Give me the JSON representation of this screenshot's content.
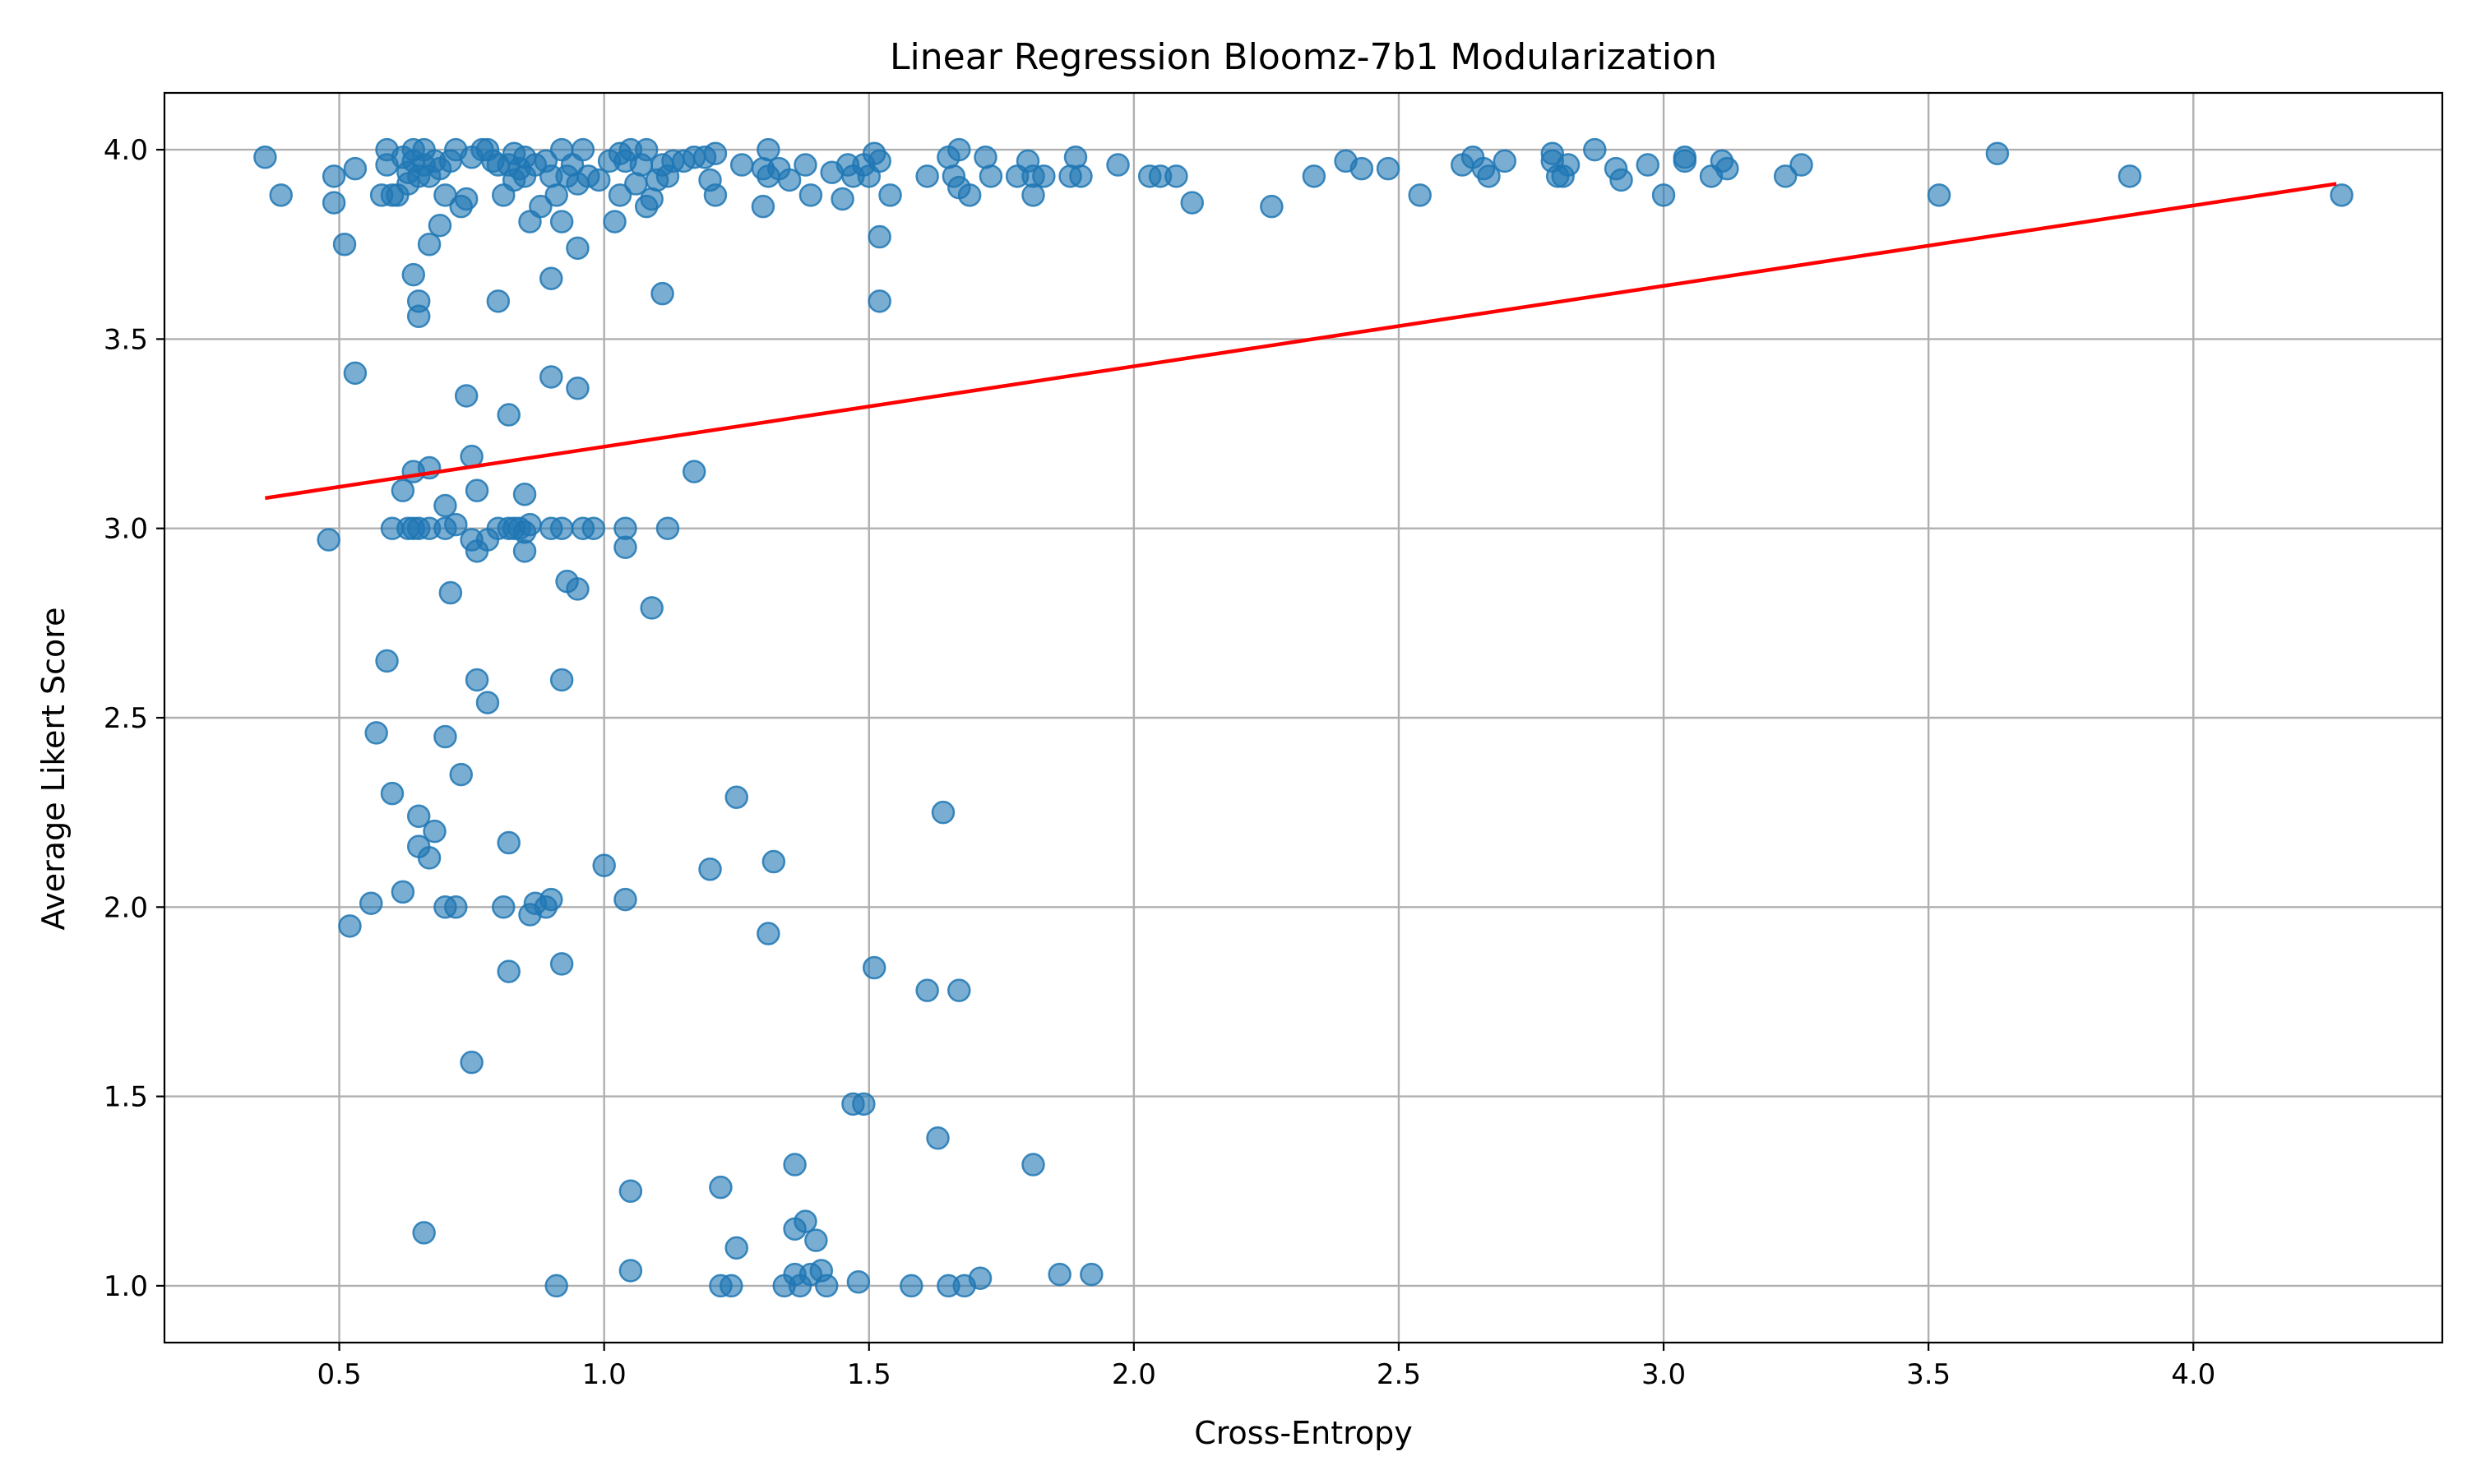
{
  "chart_data": {
    "type": "scatter",
    "title": "Linear Regression Bloomz-7b1 Modularization",
    "xlabel": "Cross-Entropy",
    "ylabel": "Average Likert Score",
    "xlim": [
      0.17,
      4.47
    ],
    "ylim": [
      0.85,
      4.15
    ],
    "xticks": [
      0.5,
      1.0,
      1.5,
      2.0,
      2.5,
      3.0,
      3.5,
      4.0
    ],
    "xtick_labels": [
      "0.5",
      "1.0",
      "1.5",
      "2.0",
      "2.5",
      "3.0",
      "3.5",
      "4.0"
    ],
    "yticks": [
      1.0,
      1.5,
      2.0,
      2.5,
      3.0,
      3.5,
      4.0
    ],
    "ytick_labels": [
      "1.0",
      "1.5",
      "2.0",
      "2.5",
      "3.0",
      "3.5",
      "4.0"
    ],
    "grid": true,
    "point_color": "#1f77b4",
    "line_color": "#ff0000",
    "regression_line": {
      "x": [
        0.36,
        4.27
      ],
      "y": [
        3.08,
        3.91
      ]
    },
    "points": [
      [
        0.36,
        3.98
      ],
      [
        0.39,
        3.88
      ],
      [
        0.49,
        3.93
      ],
      [
        0.49,
        3.86
      ],
      [
        0.51,
        3.75
      ],
      [
        0.53,
        3.95
      ],
      [
        0.58,
        3.88
      ],
      [
        0.59,
        3.96
      ],
      [
        0.59,
        4.0
      ],
      [
        0.6,
        3.88
      ],
      [
        0.61,
        3.88
      ],
      [
        0.62,
        3.98
      ],
      [
        0.63,
        3.94
      ],
      [
        0.63,
        3.91
      ],
      [
        0.64,
        4.0
      ],
      [
        0.64,
        3.97
      ],
      [
        0.65,
        3.93
      ],
      [
        0.66,
        4.0
      ],
      [
        0.66,
        3.96
      ],
      [
        0.67,
        3.93
      ],
      [
        0.68,
        3.97
      ],
      [
        0.69,
        3.95
      ],
      [
        0.7,
        3.88
      ],
      [
        0.71,
        3.97
      ],
      [
        0.72,
        4.0
      ],
      [
        0.73,
        3.85
      ],
      [
        0.74,
        3.87
      ],
      [
        0.75,
        3.98
      ],
      [
        0.77,
        4.0
      ],
      [
        0.78,
        4.0
      ],
      [
        0.79,
        3.97
      ],
      [
        0.8,
        3.96
      ],
      [
        0.81,
        3.88
      ],
      [
        0.82,
        3.96
      ],
      [
        0.83,
        3.99
      ],
      [
        0.83,
        3.92
      ],
      [
        0.84,
        3.95
      ],
      [
        0.85,
        3.98
      ],
      [
        0.85,
        3.93
      ],
      [
        0.86,
        3.81
      ],
      [
        0.87,
        3.96
      ],
      [
        0.88,
        3.85
      ],
      [
        0.89,
        3.97
      ],
      [
        0.9,
        3.93
      ],
      [
        0.91,
        3.88
      ],
      [
        0.92,
        4.0
      ],
      [
        0.92,
        3.81
      ],
      [
        0.93,
        3.93
      ],
      [
        0.94,
        3.96
      ],
      [
        0.95,
        3.74
      ],
      [
        0.95,
        3.91
      ],
      [
        0.96,
        4.0
      ],
      [
        0.97,
        3.93
      ],
      [
        0.99,
        3.92
      ],
      [
        1.01,
        3.97
      ],
      [
        1.02,
        3.81
      ],
      [
        1.03,
        3.99
      ],
      [
        1.03,
        3.88
      ],
      [
        1.04,
        3.97
      ],
      [
        1.05,
        4.0
      ],
      [
        1.06,
        3.91
      ],
      [
        1.07,
        3.96
      ],
      [
        1.08,
        4.0
      ],
      [
        1.08,
        3.85
      ],
      [
        1.09,
        3.87
      ],
      [
        1.1,
        3.92
      ],
      [
        1.11,
        3.96
      ],
      [
        1.12,
        3.93
      ],
      [
        1.13,
        3.97
      ],
      [
        1.15,
        3.97
      ],
      [
        1.17,
        3.98
      ],
      [
        1.19,
        3.98
      ],
      [
        1.2,
        3.92
      ],
      [
        1.21,
        3.88
      ],
      [
        1.21,
        3.99
      ],
      [
        1.26,
        3.96
      ],
      [
        1.3,
        3.95
      ],
      [
        1.3,
        3.85
      ],
      [
        1.31,
        4.0
      ],
      [
        1.31,
        3.93
      ],
      [
        1.33,
        3.95
      ],
      [
        1.35,
        3.92
      ],
      [
        1.38,
        3.96
      ],
      [
        1.39,
        3.88
      ],
      [
        1.43,
        3.94
      ],
      [
        1.45,
        3.87
      ],
      [
        1.46,
        3.96
      ],
      [
        1.47,
        3.93
      ],
      [
        1.49,
        3.96
      ],
      [
        1.5,
        3.93
      ],
      [
        1.51,
        3.99
      ],
      [
        1.52,
        3.97
      ],
      [
        1.54,
        3.88
      ],
      [
        1.61,
        3.93
      ],
      [
        1.65,
        3.98
      ],
      [
        1.66,
        3.93
      ],
      [
        1.67,
        4.0
      ],
      [
        1.67,
        3.9
      ],
      [
        1.69,
        3.88
      ],
      [
        1.72,
        3.98
      ],
      [
        1.73,
        3.93
      ],
      [
        1.78,
        3.93
      ],
      [
        1.8,
        3.97
      ],
      [
        1.81,
        3.88
      ],
      [
        1.81,
        3.93
      ],
      [
        1.83,
        3.93
      ],
      [
        1.88,
        3.93
      ],
      [
        1.89,
        3.98
      ],
      [
        1.9,
        3.93
      ],
      [
        1.97,
        3.96
      ],
      [
        2.03,
        3.93
      ],
      [
        2.05,
        3.93
      ],
      [
        2.08,
        3.93
      ],
      [
        2.11,
        3.86
      ],
      [
        2.26,
        3.85
      ],
      [
        2.34,
        3.93
      ],
      [
        2.4,
        3.97
      ],
      [
        2.43,
        3.95
      ],
      [
        2.48,
        3.95
      ],
      [
        2.54,
        3.88
      ],
      [
        2.62,
        3.96
      ],
      [
        2.64,
        3.98
      ],
      [
        2.66,
        3.95
      ],
      [
        2.67,
        3.93
      ],
      [
        2.7,
        3.97
      ],
      [
        2.79,
        3.99
      ],
      [
        2.79,
        3.97
      ],
      [
        2.8,
        3.93
      ],
      [
        2.81,
        3.93
      ],
      [
        2.82,
        3.96
      ],
      [
        2.87,
        4.0
      ],
      [
        2.91,
        3.95
      ],
      [
        2.92,
        3.92
      ],
      [
        2.97,
        3.96
      ],
      [
        3.0,
        3.88
      ],
      [
        3.04,
        3.98
      ],
      [
        3.04,
        3.97
      ],
      [
        3.09,
        3.93
      ],
      [
        3.11,
        3.97
      ],
      [
        3.12,
        3.95
      ],
      [
        3.23,
        3.93
      ],
      [
        3.26,
        3.96
      ],
      [
        3.52,
        3.88
      ],
      [
        3.63,
        3.99
      ],
      [
        3.88,
        3.93
      ],
      [
        4.28,
        3.88
      ],
      [
        0.64,
        3.67
      ],
      [
        0.65,
        3.6
      ],
      [
        0.65,
        3.56
      ],
      [
        0.67,
        3.75
      ],
      [
        0.69,
        3.8
      ],
      [
        0.8,
        3.6
      ],
      [
        0.9,
        3.66
      ],
      [
        1.11,
        3.62
      ],
      [
        1.52,
        3.77
      ],
      [
        1.52,
        3.6
      ],
      [
        0.53,
        3.41
      ],
      [
        0.74,
        3.35
      ],
      [
        0.82,
        3.3
      ],
      [
        0.9,
        3.4
      ],
      [
        0.95,
        3.37
      ],
      [
        0.62,
        3.1
      ],
      [
        0.64,
        3.15
      ],
      [
        0.67,
        3.16
      ],
      [
        0.75,
        3.19
      ],
      [
        0.76,
        3.1
      ],
      [
        0.85,
        3.09
      ],
      [
        0.7,
        3.06
      ],
      [
        1.17,
        3.15
      ],
      [
        0.48,
        2.97
      ],
      [
        0.6,
        3.0
      ],
      [
        0.63,
        3.0
      ],
      [
        0.64,
        3.0
      ],
      [
        0.65,
        3.0
      ],
      [
        0.67,
        3.0
      ],
      [
        0.7,
        3.0
      ],
      [
        0.72,
        3.01
      ],
      [
        0.75,
        2.97
      ],
      [
        0.76,
        2.94
      ],
      [
        0.78,
        2.97
      ],
      [
        0.8,
        3.0
      ],
      [
        0.82,
        3.0
      ],
      [
        0.83,
        3.0
      ],
      [
        0.84,
        3.0
      ],
      [
        0.85,
        2.99
      ],
      [
        0.85,
        2.94
      ],
      [
        0.86,
        3.01
      ],
      [
        0.9,
        3.0
      ],
      [
        0.92,
        3.0
      ],
      [
        0.96,
        3.0
      ],
      [
        0.98,
        3.0
      ],
      [
        1.04,
        3.0
      ],
      [
        1.04,
        2.95
      ],
      [
        1.12,
        3.0
      ],
      [
        0.71,
        2.83
      ],
      [
        0.93,
        2.86
      ],
      [
        0.95,
        2.84
      ],
      [
        1.09,
        2.79
      ],
      [
        0.59,
        2.65
      ],
      [
        0.76,
        2.6
      ],
      [
        0.78,
        2.54
      ],
      [
        0.92,
        2.6
      ],
      [
        0.57,
        2.46
      ],
      [
        0.7,
        2.45
      ],
      [
        0.6,
        2.3
      ],
      [
        0.73,
        2.35
      ],
      [
        1.25,
        2.29
      ],
      [
        1.64,
        2.25
      ],
      [
        0.65,
        2.24
      ],
      [
        0.65,
        2.16
      ],
      [
        0.67,
        2.13
      ],
      [
        0.68,
        2.2
      ],
      [
        0.82,
        2.17
      ],
      [
        1.0,
        2.11
      ],
      [
        1.2,
        2.1
      ],
      [
        1.32,
        2.12
      ],
      [
        0.52,
        1.95
      ],
      [
        0.56,
        2.01
      ],
      [
        0.62,
        2.04
      ],
      [
        0.7,
        2.0
      ],
      [
        0.72,
        2.0
      ],
      [
        0.81,
        2.0
      ],
      [
        0.86,
        1.98
      ],
      [
        0.87,
        2.01
      ],
      [
        0.89,
        2.0
      ],
      [
        0.9,
        2.02
      ],
      [
        1.04,
        2.02
      ],
      [
        1.31,
        1.93
      ],
      [
        0.82,
        1.83
      ],
      [
        0.92,
        1.85
      ],
      [
        1.51,
        1.84
      ],
      [
        1.61,
        1.78
      ],
      [
        1.67,
        1.78
      ],
      [
        0.75,
        1.59
      ],
      [
        1.47,
        1.48
      ],
      [
        1.49,
        1.48
      ],
      [
        1.63,
        1.39
      ],
      [
        1.36,
        1.32
      ],
      [
        1.81,
        1.32
      ],
      [
        1.05,
        1.25
      ],
      [
        1.22,
        1.26
      ],
      [
        0.66,
        1.14
      ],
      [
        1.25,
        1.1
      ],
      [
        1.36,
        1.15
      ],
      [
        1.38,
        1.17
      ],
      [
        1.4,
        1.12
      ],
      [
        0.91,
        1.0
      ],
      [
        1.05,
        1.04
      ],
      [
        1.22,
        1.0
      ],
      [
        1.24,
        1.0
      ],
      [
        1.34,
        1.0
      ],
      [
        1.36,
        1.03
      ],
      [
        1.37,
        1.0
      ],
      [
        1.39,
        1.03
      ],
      [
        1.41,
        1.04
      ],
      [
        1.42,
        1.0
      ],
      [
        1.48,
        1.01
      ],
      [
        1.58,
        1.0
      ],
      [
        1.65,
        1.0
      ],
      [
        1.68,
        1.0
      ],
      [
        1.71,
        1.02
      ],
      [
        1.86,
        1.03
      ],
      [
        1.92,
        1.03
      ]
    ]
  }
}
